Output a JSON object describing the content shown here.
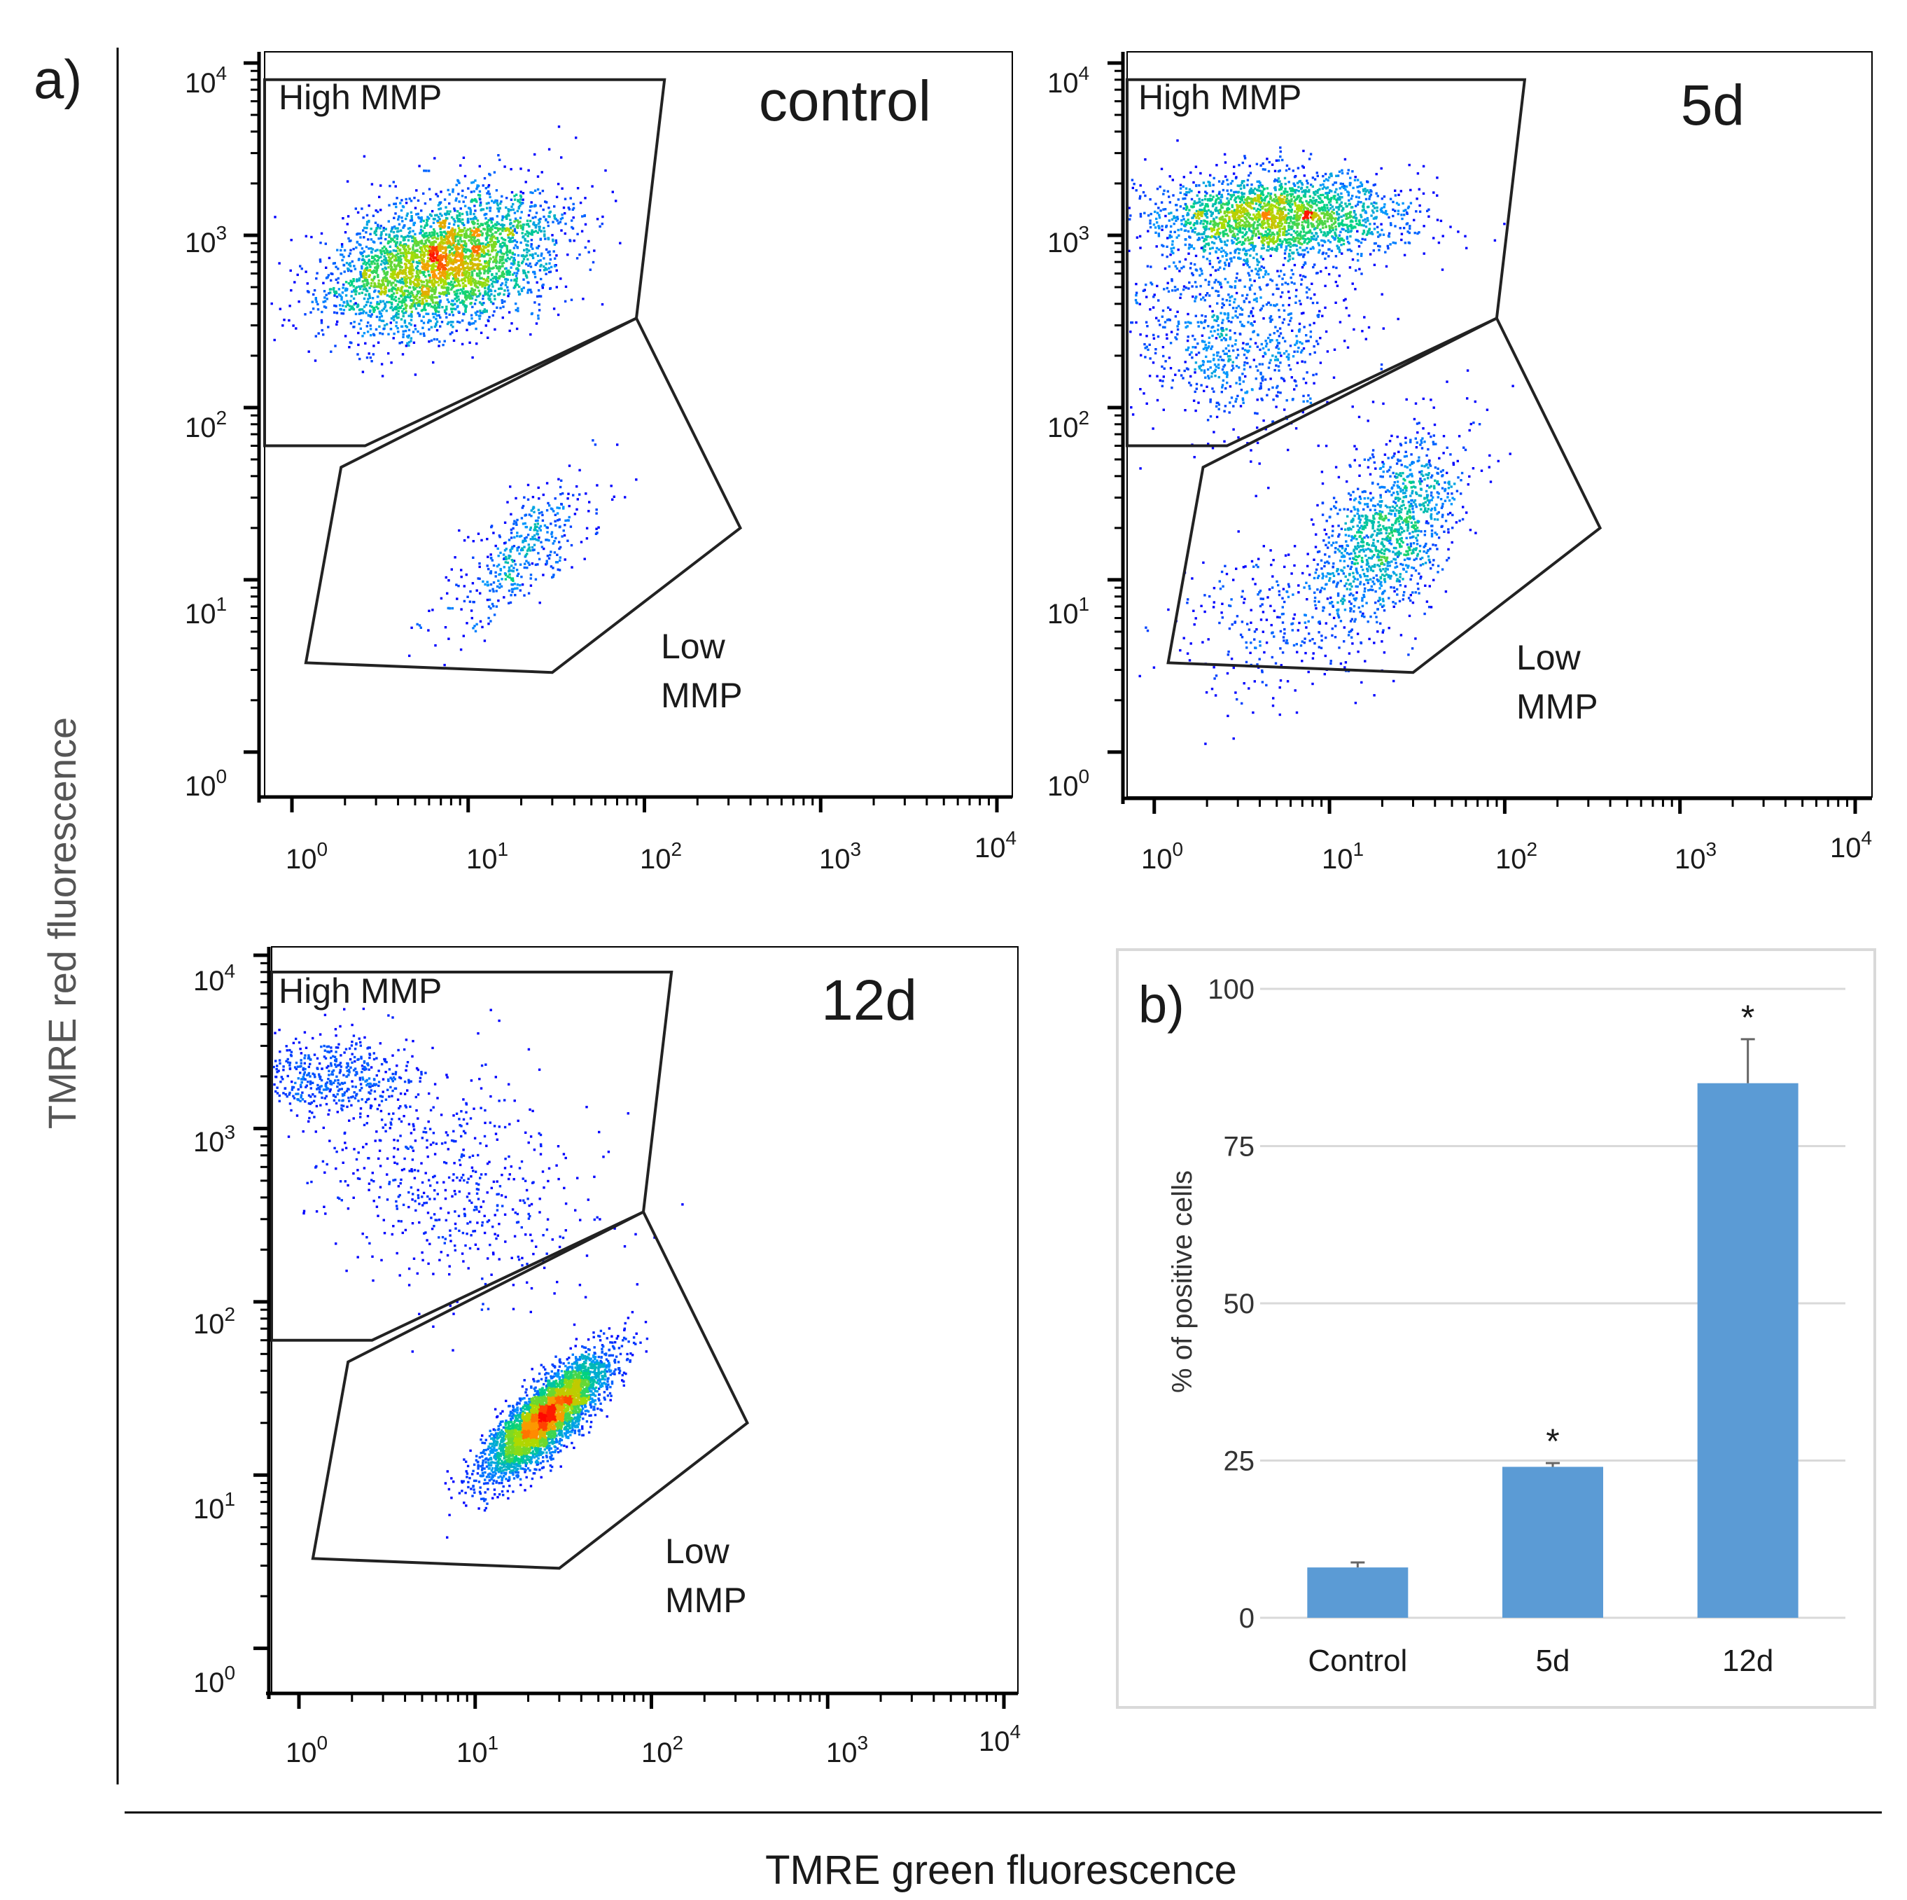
{
  "figure": {
    "panel_a_label": "a)",
    "panel_b_label": "b)",
    "y_axis_title": "TMRE red fluorescence",
    "x_axis_title": "TMRE green fluorescence"
  },
  "gate_labels": {
    "high": "High MMP",
    "low_line1": "Low",
    "low_line2": "MMP"
  },
  "log_ticks": [
    {
      "base": "10",
      "exp": "0"
    },
    {
      "base": "10",
      "exp": "1"
    },
    {
      "base": "10",
      "exp": "2"
    },
    {
      "base": "10",
      "exp": "3"
    },
    {
      "base": "10",
      "exp": "4"
    }
  ],
  "colors": {
    "bar": "#5b9bd5",
    "axis": "#000000",
    "grid": "#d9d9d9",
    "density_low": "#0000ff",
    "density_mid": "#00d060",
    "density_high": "#ff0000"
  },
  "chart_data": [
    {
      "type": "scatter",
      "title": "control",
      "xlabel": "TMRE green fluorescence",
      "ylabel": "TMRE red fluorescence",
      "xscale": "log",
      "yscale": "log",
      "xlim": [
        0.7,
        10000
      ],
      "ylim": [
        0.7,
        10000
      ],
      "gates": [
        {
          "name": "High MMP",
          "polygon": [
            [
              0.7,
              60
            ],
            [
              0.7,
              8000
            ],
            [
              130,
              8000
            ],
            [
              90,
              330
            ],
            [
              2.6,
              60
            ]
          ]
        },
        {
          "name": "Low MMP",
          "polygon": [
            [
              1.9,
              45
            ],
            [
              90,
              330
            ],
            [
              350,
              20
            ],
            [
              30,
              2.9
            ],
            [
              1.2,
              3.3
            ]
          ]
        }
      ],
      "populations": [
        {
          "gate": "High MMP",
          "center": [
            7,
            700
          ],
          "spread_log10": [
            0.32,
            0.2
          ],
          "corr": 0.35,
          "n": 3400
        },
        {
          "gate": "Low MMP",
          "center": [
            20,
            15
          ],
          "spread_log10": [
            0.22,
            0.22
          ],
          "corr": 0.75,
          "n": 420
        }
      ]
    },
    {
      "type": "scatter",
      "title": "5d",
      "xlabel": "TMRE green fluorescence",
      "ylabel": "TMRE red fluorescence",
      "xscale": "log",
      "yscale": "log",
      "xlim": [
        0.7,
        10000
      ],
      "ylim": [
        0.7,
        10000
      ],
      "gates": [
        {
          "name": "High MMP",
          "polygon": [
            [
              0.7,
              60
            ],
            [
              0.7,
              8000
            ],
            [
              130,
              8000
            ],
            [
              90,
              330
            ],
            [
              2.6,
              60
            ]
          ]
        },
        {
          "name": "Low MMP",
          "polygon": [
            [
              1.9,
              45
            ],
            [
              90,
              330
            ],
            [
              350,
              20
            ],
            [
              30,
              2.9
            ],
            [
              1.2,
              3.3
            ]
          ]
        }
      ],
      "populations": [
        {
          "gate": "High MMP",
          "center": [
            5,
            1300
          ],
          "spread_log10": [
            0.35,
            0.13
          ],
          "corr": 0.0,
          "n": 2100
        },
        {
          "gate": "High MMP",
          "center": [
            3,
            300
          ],
          "spread_log10": [
            0.32,
            0.3
          ],
          "corr": 0.0,
          "n": 900
        },
        {
          "gate": "Low MMP",
          "center": [
            22,
            20
          ],
          "spread_log10": [
            0.2,
            0.28
          ],
          "corr": 0.5,
          "n": 1200
        },
        {
          "gate": "Low MMP",
          "center": [
            5,
            6
          ],
          "spread_log10": [
            0.35,
            0.28
          ],
          "corr": 0.3,
          "n": 300
        }
      ]
    },
    {
      "type": "scatter",
      "title": "12d",
      "xlabel": "TMRE green fluorescence",
      "ylabel": "TMRE red fluorescence",
      "xscale": "log",
      "yscale": "log",
      "xlim": [
        0.7,
        10000
      ],
      "ylim": [
        0.7,
        10000
      ],
      "gates": [
        {
          "name": "High MMP",
          "polygon": [
            [
              0.7,
              60
            ],
            [
              0.7,
              8000
            ],
            [
              130,
              8000
            ],
            [
              90,
              330
            ],
            [
              2.6,
              60
            ]
          ]
        },
        {
          "name": "Low MMP",
          "polygon": [
            [
              1.9,
              45
            ],
            [
              90,
              330
            ],
            [
              350,
              20
            ],
            [
              30,
              2.9
            ],
            [
              1.2,
              3.3
            ]
          ]
        }
      ],
      "populations": [
        {
          "gate": "High MMP",
          "center": [
            1.5,
            2000
          ],
          "spread_log10": [
            0.25,
            0.12
          ],
          "corr": 0.0,
          "n": 500
        },
        {
          "gate": "High MMP",
          "center": [
            7,
            500
          ],
          "spread_log10": [
            0.4,
            0.35
          ],
          "corr": -0.2,
          "n": 550
        },
        {
          "gate": "Low MMP",
          "center": [
            25,
            22
          ],
          "spread_log10": [
            0.17,
            0.17
          ],
          "corr": 0.8,
          "n": 4200
        }
      ]
    },
    {
      "type": "bar",
      "categories": [
        "Control",
        "5d",
        "12d"
      ],
      "values": [
        8,
        24,
        85
      ],
      "errors": [
        0.8,
        0.6,
        7
      ],
      "annotations": [
        "",
        "*",
        "*"
      ],
      "ylabel": "% of positive cells",
      "xlabel": "",
      "ylim": [
        0,
        100
      ],
      "yticks": [
        0,
        25,
        50,
        75,
        100
      ],
      "grid": true
    }
  ]
}
